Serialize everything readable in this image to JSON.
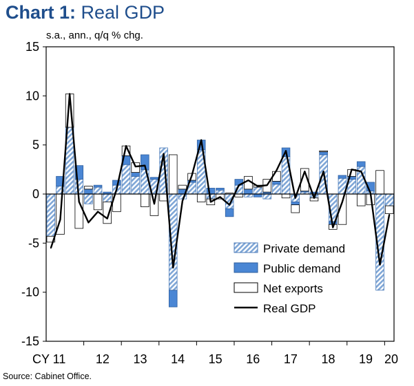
{
  "title": {
    "prefix": "Chart 1:",
    "text": "Real GDP"
  },
  "unit_label": "s.a., ann., q/q % chg.",
  "source": "Source: Cabinet Office.",
  "chart_data": {
    "type": "bar",
    "stacked": true,
    "title": "Real GDP",
    "ylabel": "s.a., ann., q/q % chg.",
    "ylim": [
      -15,
      15
    ],
    "yticks": [
      15,
      10,
      5,
      0,
      -5,
      -10,
      -15
    ],
    "x_groups": [
      {
        "label": "CY 11",
        "start_index": 0
      },
      {
        "label": "12",
        "start_index": 4
      },
      {
        "label": "13",
        "start_index": 8
      },
      {
        "label": "14",
        "start_index": 12
      },
      {
        "label": "15",
        "start_index": 16
      },
      {
        "label": "16",
        "start_index": 20
      },
      {
        "label": "17",
        "start_index": 24
      },
      {
        "label": "18",
        "start_index": 28
      },
      {
        "label": "19",
        "start_index": 32
      },
      {
        "label": "20",
        "start_index": 36
      }
    ],
    "categories": [
      "2011Q1",
      "2011Q2",
      "2011Q3",
      "2011Q4",
      "2012Q1",
      "2012Q2",
      "2012Q3",
      "2012Q4",
      "2013Q1",
      "2013Q2",
      "2013Q3",
      "2013Q4",
      "2014Q1",
      "2014Q2",
      "2014Q3",
      "2014Q4",
      "2015Q1",
      "2015Q2",
      "2015Q3",
      "2015Q4",
      "2016Q1",
      "2016Q2",
      "2016Q3",
      "2016Q4",
      "2017Q1",
      "2017Q2",
      "2017Q3",
      "2017Q4",
      "2018Q1",
      "2018Q2",
      "2018Q3",
      "2018Q4",
      "2019Q1",
      "2019Q2",
      "2019Q3",
      "2019Q4",
      "2020Q1"
    ],
    "series": [
      {
        "name": "Private demand",
        "values": [
          -4.3,
          0.8,
          6.8,
          1.5,
          -1.0,
          0.7,
          -0.8,
          0.9,
          3.0,
          1.8,
          2.5,
          1.5,
          4.7,
          -9.8,
          -0.5,
          1.2,
          4.5,
          -0.5,
          0.4,
          -1.5,
          0.9,
          -0.3,
          0.7,
          -0.5,
          1.0,
          3.8,
          -0.8,
          0.2,
          -0.4,
          4.0,
          -2.8,
          1.6,
          1.5,
          2.8,
          0.3,
          -9.8,
          -1.2
        ]
      },
      {
        "name": "Public demand",
        "values": [
          0.0,
          1.0,
          0.0,
          1.4,
          0.5,
          0.2,
          0.2,
          0.5,
          0.9,
          0.4,
          1.5,
          0.2,
          0.0,
          -1.7,
          0.5,
          0.2,
          1.0,
          0.6,
          0.2,
          -0.8,
          0.6,
          0.5,
          -0.3,
          0.2,
          0.3,
          0.9,
          -0.3,
          0.1,
          0.2,
          0.3,
          -0.3,
          0.3,
          0.3,
          0.5,
          0.9,
          0.0,
          0.0
        ]
      },
      {
        "name": "Net exports",
        "values": [
          -0.6,
          -4.1,
          3.4,
          -3.5,
          0.3,
          -1.6,
          -2.2,
          -1.8,
          1.0,
          1.0,
          -1.3,
          -2.2,
          -0.7,
          4.0,
          0.4,
          0.7,
          -0.8,
          -0.6,
          -0.5,
          0.1,
          -0.3,
          1.3,
          0.2,
          1.3,
          1.0,
          -0.4,
          -0.8,
          2.3,
          -0.3,
          0.1,
          -0.5,
          -3.1,
          0.7,
          -1.2,
          -1.1,
          2.4,
          -0.8
        ]
      },
      {
        "name": "Real GDP",
        "type": "line",
        "values": [
          -5.5,
          -2.6,
          10.2,
          -0.8,
          -2.9,
          -1.8,
          -2.5,
          0.5,
          4.9,
          2.8,
          2.9,
          -1.0,
          4.1,
          -7.5,
          -0.7,
          1.9,
          5.5,
          -0.8,
          -0.3,
          -1.1,
          0.9,
          1.4,
          0.8,
          0.9,
          2.4,
          4.4,
          -0.4,
          2.3,
          -0.4,
          2.3,
          -3.4,
          -0.8,
          2.5,
          2.3,
          0.1,
          -7.2,
          -2.1
        ]
      }
    ],
    "legend": {
      "position": "bottom-right",
      "entries": [
        "Private demand",
        "Public demand",
        "Net exports",
        "Real GDP"
      ]
    },
    "colors": {
      "public": "#4a86d4",
      "private_stripe": "#7fa6d6",
      "line": "#000000",
      "axis": "#000000"
    },
    "grid": false
  }
}
